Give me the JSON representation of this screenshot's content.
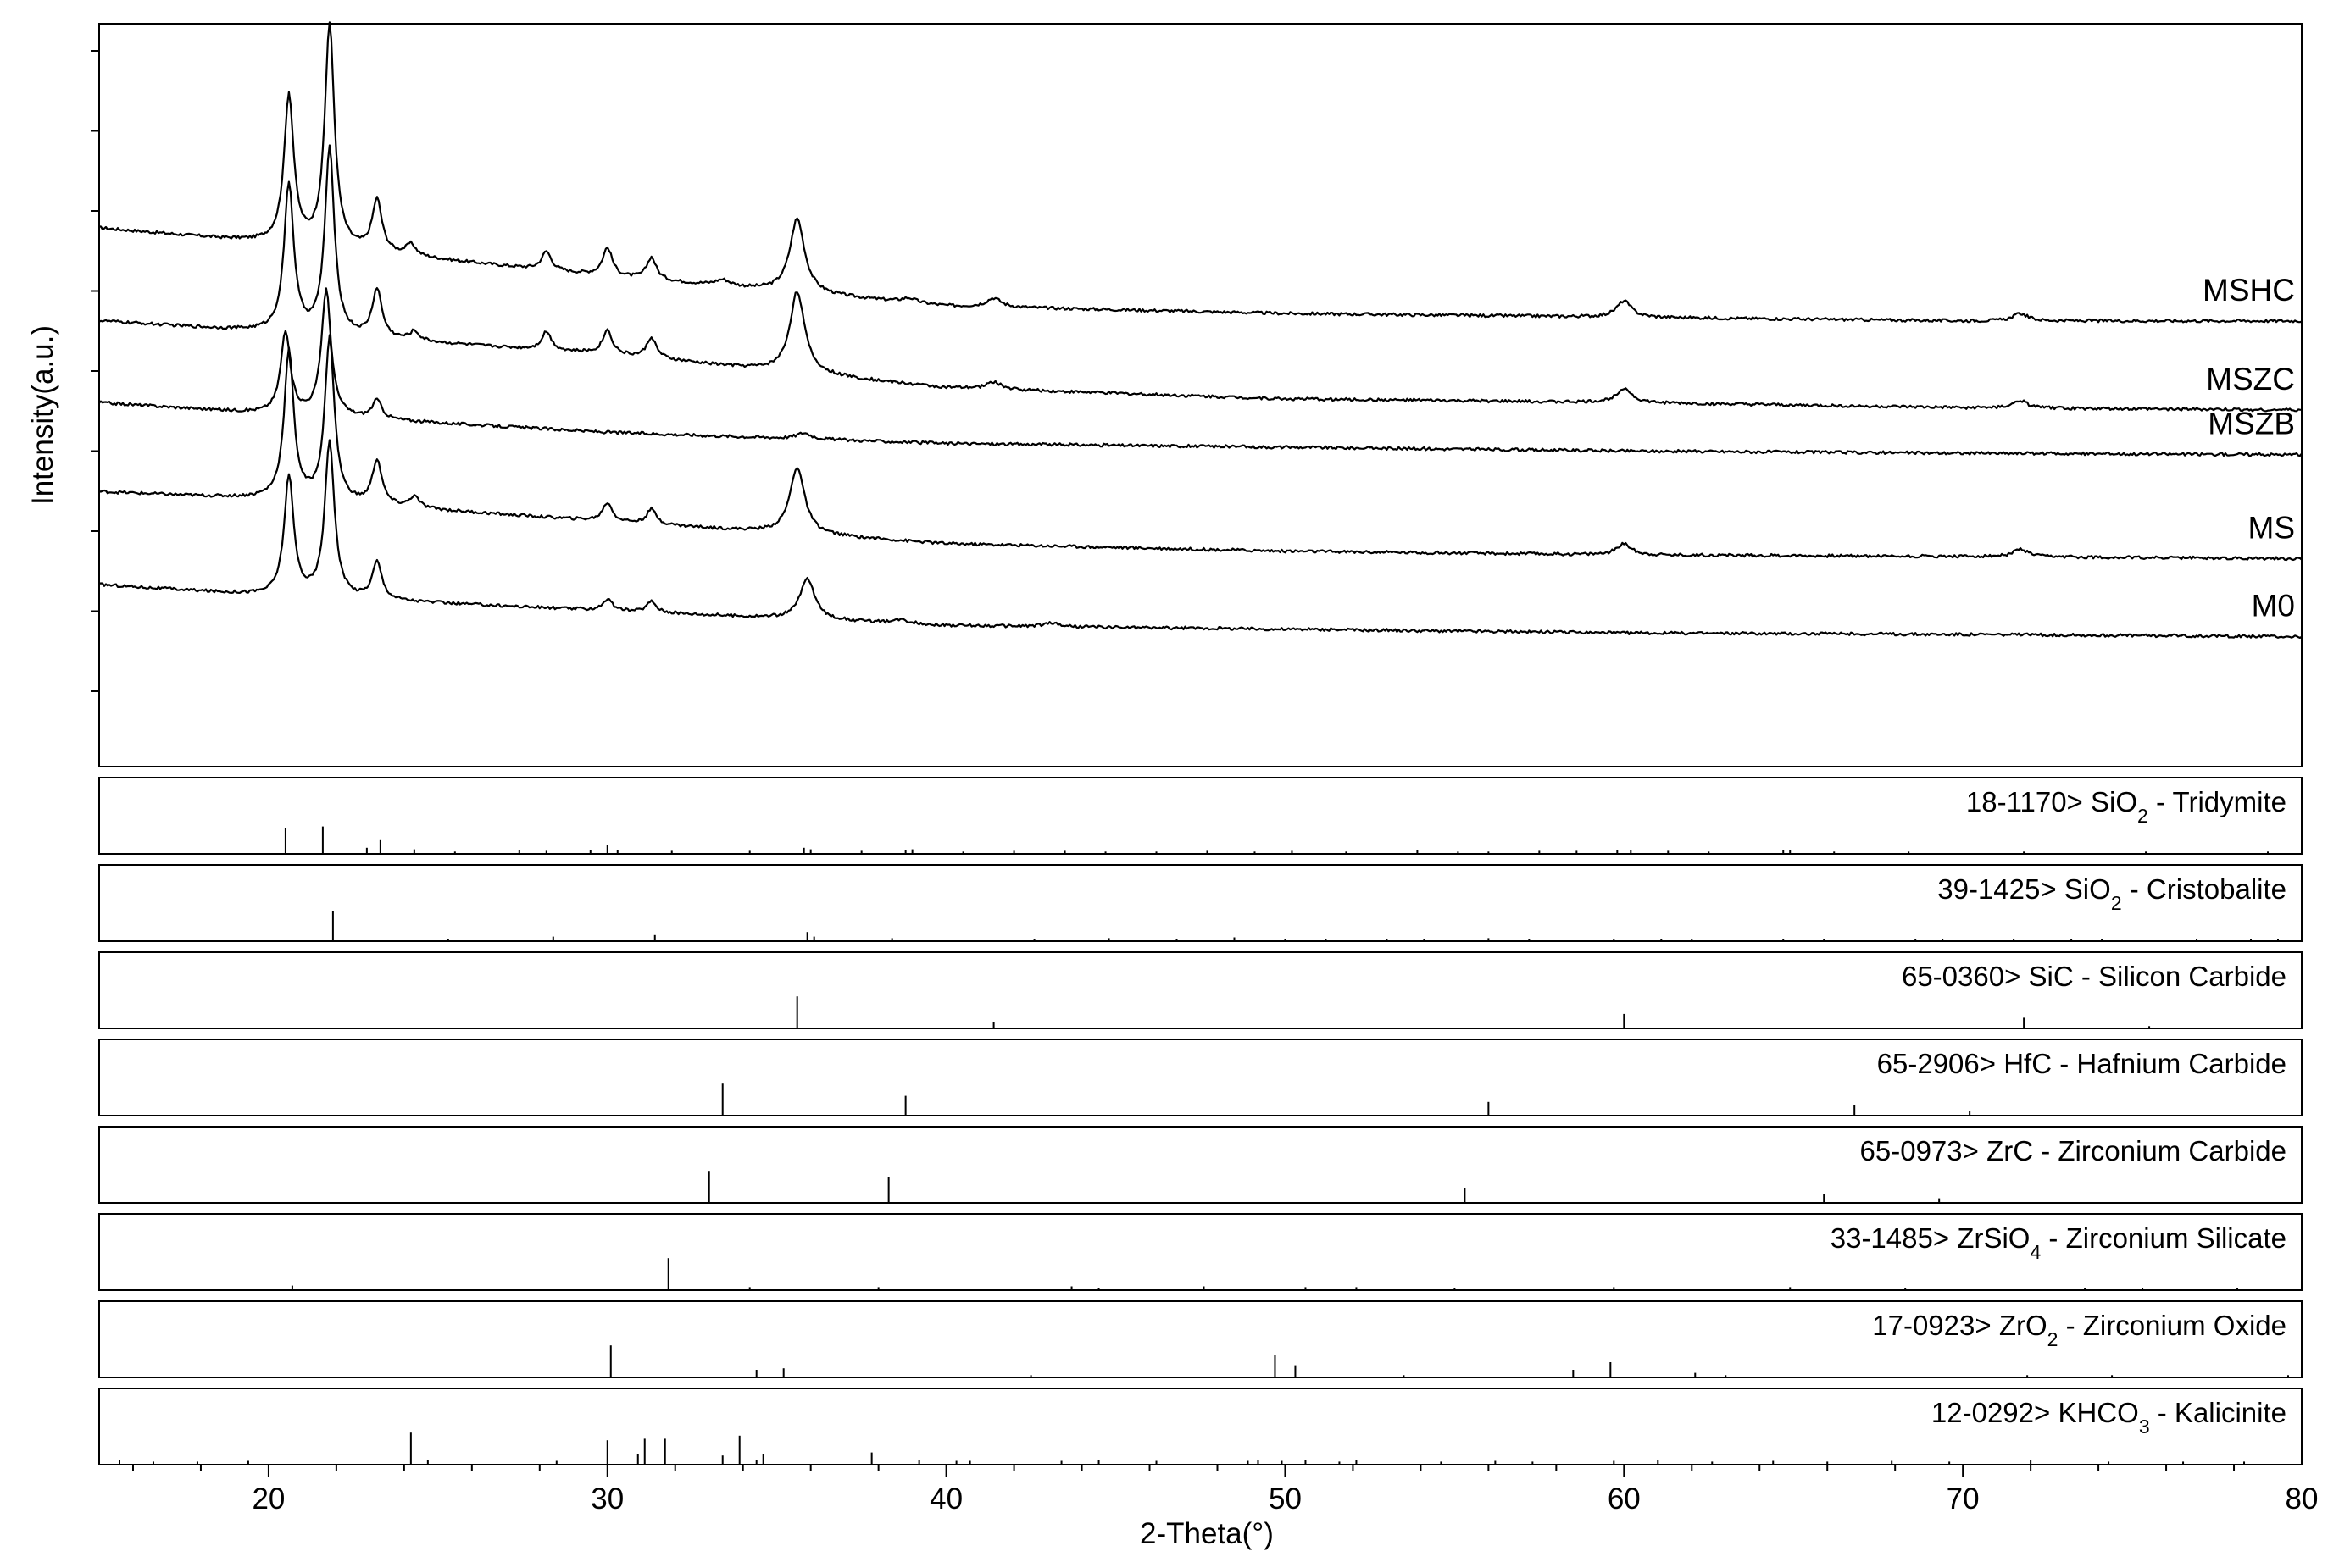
{
  "chart_data": {
    "type": "line",
    "xlabel": "2-Theta(°)",
    "ylabel": "Intensity(a.u.)",
    "xlim": [
      15,
      80
    ],
    "x_ticks": [
      "20",
      "30",
      "40",
      "50",
      "60",
      "70",
      "80"
    ],
    "grid": false,
    "series": [
      {
        "name": "MSHC",
        "baseline": [
          [
            15,
            0.725
          ],
          [
            20,
            0.705
          ],
          [
            30,
            0.66
          ],
          [
            40,
            0.62
          ],
          [
            50,
            0.61
          ],
          [
            60,
            0.605
          ],
          [
            70,
            0.6
          ],
          [
            80,
            0.6
          ]
        ],
        "peaks": [
          [
            20.6,
            0.2
          ],
          [
            21.8,
            0.3
          ],
          [
            23.2,
            0.07
          ],
          [
            24.2,
            0.015
          ],
          [
            28.2,
            0.025
          ],
          [
            30.0,
            0.038
          ],
          [
            31.3,
            0.03
          ],
          [
            33.4,
            0.008
          ],
          [
            35.6,
            0.1
          ],
          [
            38.9,
            0.006
          ],
          [
            41.4,
            0.012
          ],
          [
            60.0,
            0.022
          ],
          [
            71.7,
            0.01
          ]
        ]
      },
      {
        "name": "MSZC",
        "baseline": [
          [
            15,
            0.6
          ],
          [
            20,
            0.585
          ],
          [
            30,
            0.555
          ],
          [
            40,
            0.51
          ],
          [
            50,
            0.495
          ],
          [
            60,
            0.49
          ],
          [
            70,
            0.483
          ],
          [
            80,
            0.48
          ]
        ],
        "peaks": [
          [
            20.6,
            0.2
          ],
          [
            21.8,
            0.25
          ],
          [
            23.2,
            0.065
          ],
          [
            24.3,
            0.012
          ],
          [
            28.2,
            0.025
          ],
          [
            30.0,
            0.032
          ],
          [
            31.3,
            0.028
          ],
          [
            35.6,
            0.11
          ],
          [
            41.4,
            0.01
          ],
          [
            60.0,
            0.02
          ],
          [
            71.7,
            0.01
          ]
        ]
      },
      {
        "name": "MSZB",
        "baseline": [
          [
            15,
            0.49
          ],
          [
            20,
            0.475
          ],
          [
            30,
            0.45
          ],
          [
            40,
            0.435
          ],
          [
            50,
            0.43
          ],
          [
            60,
            0.425
          ],
          [
            70,
            0.422
          ],
          [
            80,
            0.42
          ]
        ],
        "peaks": [
          [
            20.5,
            0.11
          ],
          [
            21.7,
            0.17
          ],
          [
            23.2,
            0.025
          ],
          [
            35.8,
            0.008
          ]
        ]
      },
      {
        "name": "MS",
        "baseline": [
          [
            15,
            0.37
          ],
          [
            20,
            0.36
          ],
          [
            30,
            0.33
          ],
          [
            40,
            0.3
          ],
          [
            50,
            0.29
          ],
          [
            60,
            0.285
          ],
          [
            70,
            0.283
          ],
          [
            80,
            0.28
          ]
        ],
        "peaks": [
          [
            20.6,
            0.2
          ],
          [
            21.8,
            0.22
          ],
          [
            23.2,
            0.06
          ],
          [
            24.3,
            0.015
          ],
          [
            30.0,
            0.025
          ],
          [
            31.3,
            0.02
          ],
          [
            35.6,
            0.09
          ],
          [
            60.0,
            0.015
          ],
          [
            71.7,
            0.01
          ]
        ]
      },
      {
        "name": "M0",
        "baseline": [
          [
            15,
            0.245
          ],
          [
            20,
            0.23
          ],
          [
            30,
            0.21
          ],
          [
            40,
            0.19
          ],
          [
            50,
            0.185
          ],
          [
            60,
            0.18
          ],
          [
            70,
            0.178
          ],
          [
            80,
            0.175
          ]
        ],
        "peaks": [
          [
            20.6,
            0.16
          ],
          [
            21.8,
            0.21
          ],
          [
            23.2,
            0.05
          ],
          [
            30.0,
            0.015
          ],
          [
            31.3,
            0.015
          ],
          [
            35.9,
            0.055
          ],
          [
            38.7,
            0.005
          ],
          [
            43.1,
            0.005
          ]
        ]
      }
    ],
    "reference_panels": [
      {
        "card": "18-1170>",
        "formula": "SiO",
        "subscript": "2",
        "phase_name": " - Tridymite",
        "lines": [
          [
            20.5,
            0.34
          ],
          [
            21.6,
            0.36
          ],
          [
            22.9,
            0.08
          ],
          [
            23.3,
            0.18
          ],
          [
            24.3,
            0.06
          ],
          [
            25.5,
            0.03
          ],
          [
            27.4,
            0.05
          ],
          [
            28.2,
            0.04
          ],
          [
            29.5,
            0.05
          ],
          [
            30.0,
            0.12
          ],
          [
            30.3,
            0.05
          ],
          [
            31.9,
            0.04
          ],
          [
            34.2,
            0.04
          ],
          [
            35.8,
            0.08
          ],
          [
            36.0,
            0.06
          ],
          [
            37.5,
            0.04
          ],
          [
            38.8,
            0.05
          ],
          [
            39.0,
            0.06
          ],
          [
            40.5,
            0.03
          ],
          [
            42.0,
            0.04
          ],
          [
            43.5,
            0.04
          ],
          [
            44.7,
            0.03
          ],
          [
            46.2,
            0.03
          ],
          [
            47.7,
            0.04
          ],
          [
            49.1,
            0.03
          ],
          [
            50.2,
            0.04
          ],
          [
            51.8,
            0.03
          ],
          [
            53.9,
            0.05
          ],
          [
            55.1,
            0.03
          ],
          [
            56.0,
            0.03
          ],
          [
            57.5,
            0.04
          ],
          [
            58.6,
            0.04
          ],
          [
            59.8,
            0.05
          ],
          [
            60.2,
            0.05
          ],
          [
            61.3,
            0.04
          ],
          [
            62.5,
            0.03
          ],
          [
            64.7,
            0.05
          ],
          [
            64.9,
            0.05
          ],
          [
            66.2,
            0.03
          ],
          [
            68.4,
            0.03
          ],
          [
            71.8,
            0.03
          ],
          [
            75.4,
            0.03
          ],
          [
            79.0,
            0.03
          ]
        ]
      },
      {
        "card": "39-1425>",
        "formula": "SiO",
        "subscript": "2",
        "phase_name": " - Cristobalite",
        "lines": [
          [
            21.9,
            0.4
          ],
          [
            25.3,
            0.03
          ],
          [
            28.4,
            0.06
          ],
          [
            31.4,
            0.08
          ],
          [
            35.9,
            0.12
          ],
          [
            36.1,
            0.06
          ],
          [
            38.4,
            0.04
          ],
          [
            42.6,
            0.03
          ],
          [
            44.8,
            0.04
          ],
          [
            46.8,
            0.03
          ],
          [
            48.5,
            0.05
          ],
          [
            50.0,
            0.03
          ],
          [
            51.2,
            0.03
          ],
          [
            53.0,
            0.03
          ],
          [
            54.1,
            0.03
          ],
          [
            56.0,
            0.04
          ],
          [
            57.2,
            0.03
          ],
          [
            59.7,
            0.03
          ],
          [
            61.1,
            0.03
          ],
          [
            62.0,
            0.03
          ],
          [
            64.7,
            0.03
          ],
          [
            65.9,
            0.03
          ],
          [
            68.6,
            0.03
          ],
          [
            69.4,
            0.03
          ],
          [
            71.5,
            0.03
          ],
          [
            73.2,
            0.03
          ],
          [
            74.1,
            0.03
          ],
          [
            76.9,
            0.03
          ],
          [
            78.5,
            0.03
          ],
          [
            79.3,
            0.03
          ]
        ]
      },
      {
        "card": "65-0360>",
        "formula": "SiC",
        "subscript": "",
        "phase_name": " - Silicon Carbide",
        "lines": [
          [
            35.6,
            0.42
          ],
          [
            41.4,
            0.08
          ],
          [
            60.0,
            0.19
          ],
          [
            71.8,
            0.14
          ],
          [
            75.5,
            0.03
          ]
        ]
      },
      {
        "card": "65-2906>",
        "formula": "HfC",
        "subscript": "",
        "phase_name": " - Hafnium Carbide",
        "lines": [
          [
            33.4,
            0.42
          ],
          [
            38.8,
            0.26
          ],
          [
            56.0,
            0.18
          ],
          [
            66.8,
            0.14
          ],
          [
            70.2,
            0.06
          ]
        ]
      },
      {
        "card": "65-0973>",
        "formula": "ZrC",
        "subscript": "",
        "phase_name": " - Zirconium Carbide",
        "lines": [
          [
            33.0,
            0.42
          ],
          [
            38.3,
            0.34
          ],
          [
            55.3,
            0.2
          ],
          [
            65.9,
            0.12
          ],
          [
            69.3,
            0.06
          ]
        ]
      },
      {
        "card": "33-1485>",
        "formula": "ZrSiO",
        "subscript": "4",
        "phase_name": " - Zirconium Silicate",
        "lines": [
          [
            20.7,
            0.06
          ],
          [
            31.8,
            0.42
          ],
          [
            34.2,
            0.04
          ],
          [
            38.0,
            0.04
          ],
          [
            43.7,
            0.05
          ],
          [
            44.5,
            0.03
          ],
          [
            47.6,
            0.05
          ],
          [
            50.6,
            0.04
          ],
          [
            52.1,
            0.04
          ],
          [
            55.0,
            0.03
          ],
          [
            59.7,
            0.04
          ],
          [
            64.9,
            0.04
          ],
          [
            68.3,
            0.03
          ],
          [
            73.6,
            0.03
          ],
          [
            75.3,
            0.03
          ],
          [
            78.1,
            0.03
          ]
        ]
      },
      {
        "card": "17-0923>",
        "formula": "ZrO",
        "subscript": "2",
        "phase_name": " - Zirconium Oxide",
        "lines": [
          [
            30.1,
            0.42
          ],
          [
            34.4,
            0.1
          ],
          [
            35.2,
            0.12
          ],
          [
            42.5,
            0.03
          ],
          [
            49.7,
            0.3
          ],
          [
            50.3,
            0.16
          ],
          [
            53.5,
            0.03
          ],
          [
            58.5,
            0.1
          ],
          [
            59.6,
            0.2
          ],
          [
            62.1,
            0.06
          ],
          [
            63.0,
            0.03
          ],
          [
            71.9,
            0.03
          ],
          [
            74.4,
            0.03
          ],
          [
            79.6,
            0.03
          ]
        ]
      },
      {
        "card": "12-0292>",
        "formula": "KHCO",
        "subscript": "3",
        "phase_name": " - Kalicinite",
        "lines": [
          [
            15.6,
            0.06
          ],
          [
            16.6,
            0.04
          ],
          [
            17.9,
            0.04
          ],
          [
            19.4,
            0.05
          ],
          [
            24.2,
            0.42
          ],
          [
            24.7,
            0.06
          ],
          [
            28.5,
            0.05
          ],
          [
            30.0,
            0.32
          ],
          [
            30.9,
            0.14
          ],
          [
            31.1,
            0.34
          ],
          [
            31.7,
            0.34
          ],
          [
            33.4,
            0.12
          ],
          [
            33.9,
            0.38
          ],
          [
            34.4,
            0.06
          ],
          [
            34.6,
            0.14
          ],
          [
            37.8,
            0.16
          ],
          [
            39.2,
            0.06
          ],
          [
            40.3,
            0.05
          ],
          [
            40.7,
            0.05
          ],
          [
            43.4,
            0.05
          ],
          [
            44.5,
            0.06
          ],
          [
            46.2,
            0.05
          ],
          [
            48.9,
            0.05
          ],
          [
            49.2,
            0.06
          ],
          [
            49.9,
            0.05
          ],
          [
            50.6,
            0.06
          ],
          [
            51.6,
            0.04
          ],
          [
            52.1,
            0.06
          ],
          [
            54.6,
            0.04
          ],
          [
            56.2,
            0.05
          ],
          [
            57.3,
            0.04
          ],
          [
            59.7,
            0.05
          ],
          [
            61.0,
            0.06
          ],
          [
            62.6,
            0.04
          ],
          [
            64.4,
            0.05
          ],
          [
            66.0,
            0.04
          ],
          [
            67.9,
            0.05
          ],
          [
            69.6,
            0.04
          ],
          [
            72.0,
            0.06
          ],
          [
            74.3,
            0.04
          ],
          [
            76.5,
            0.04
          ],
          [
            78.3,
            0.04
          ]
        ]
      }
    ]
  }
}
